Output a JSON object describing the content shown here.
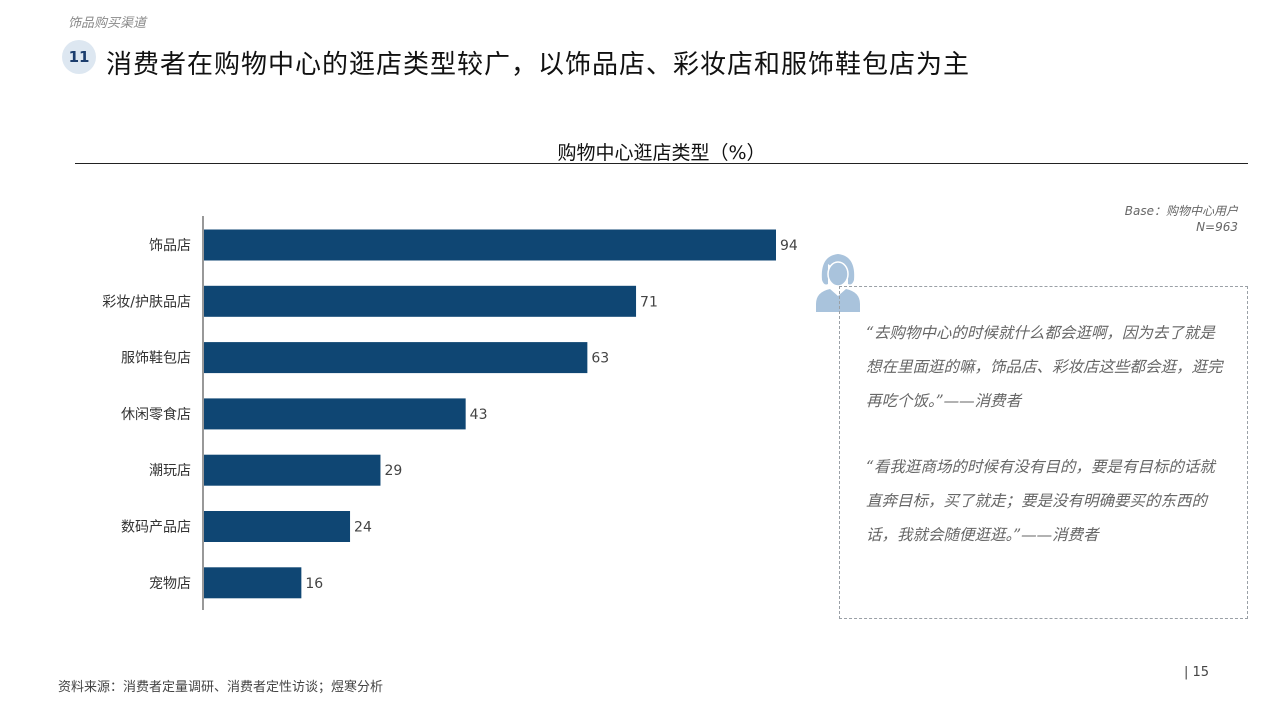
{
  "header": {
    "breadcrumb": "饰品购买渠道",
    "number": "11",
    "title": "消费者在购物中心的逛店类型较广，以饰品店、彩妆店和服饰鞋包店为主"
  },
  "base_note": {
    "line1": "Base：购物中心用户",
    "line2": "N=963"
  },
  "chart_data": {
    "type": "bar",
    "orientation": "horizontal",
    "title": "购物中心逛店类型（%）",
    "categories": [
      "饰品店",
      "彩妆/护肤品店",
      "服饰鞋包店",
      "休闲零食店",
      "潮玩店",
      "数码产品店",
      "宠物店"
    ],
    "values": [
      94,
      71,
      63,
      43,
      29,
      24,
      16
    ],
    "xlim": [
      0,
      100
    ],
    "grid": false,
    "bar_color": "#0f4673",
    "data_labels": true
  },
  "quotes": [
    "“去购物中心的时候就什么都会逛啊，因为去了就是想在里面逛的嘛，饰品店、彩妆店这些都会逛，逛完再吃个饭。”——消费者",
    "“看我逛商场的时候有没有目的，要是有目标的话就直奔目标，买了就走；要是没有明确要买的东西的话，我就会随便逛逛。”——消费者"
  ],
  "footer": {
    "source": "资料来源：消费者定量调研、消费者定性访谈；煜寒分析",
    "page": "| 15"
  },
  "colors": {
    "bar": "#0f4673",
    "badge_bg": "#dde7f1",
    "badge_text": "#1b3d6d",
    "avatar": "#a9c3dc"
  }
}
